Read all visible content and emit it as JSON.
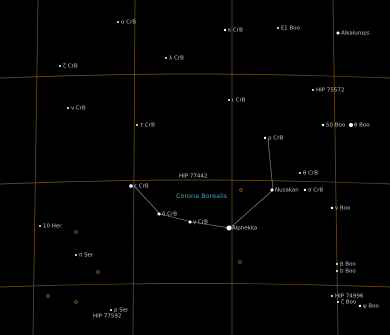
{
  "constellation": "Corona Borealis",
  "stars": [
    "ο CrB",
    "κ CrB",
    "ξ1 Boo",
    "Alkalurops",
    "ζ CrB",
    "λ CrB",
    "HIP 75572",
    "ι CrB",
    "ν CrB",
    "τ CrB",
    "50 Boo",
    "θ Boo",
    "ρ CrB",
    "σ CrB",
    "HIP 77442",
    "Nusakan",
    "ε CrB",
    "θ CrB",
    "ν Boo",
    "δ CrB",
    "γ CrB",
    "Alphekka",
    "10 Her",
    "π Ser",
    "β Boo",
    "b Boo",
    "HIP 74996",
    "ζ Boo",
    "ψ Boo",
    "ρ Ser",
    "HIP 77592"
  ]
}
